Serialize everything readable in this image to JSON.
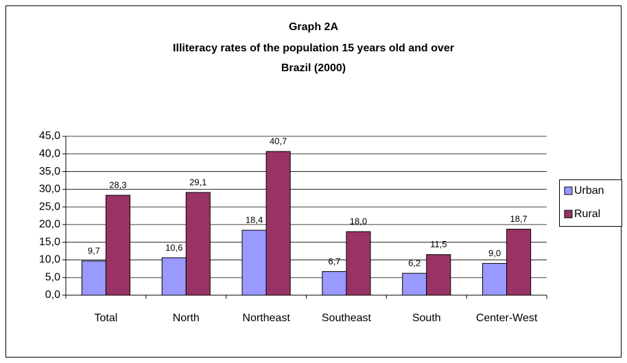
{
  "chart_data": {
    "type": "bar",
    "title": "Graph 2A",
    "subtitle": [
      "Illiteracy rates of the population 15 years old and over",
      "Brazil (2000)"
    ],
    "categories": [
      "Total",
      "North",
      "Northeast",
      "Southeast",
      "South",
      "Center-West"
    ],
    "series": [
      {
        "name": "Urban",
        "color": "#9999ff",
        "values": [
          9.7,
          10.6,
          18.4,
          6.7,
          6.2,
          9.0
        ],
        "value_labels": [
          "9,7",
          "10,6",
          "18,4",
          "6,7",
          "6,2",
          "9,0"
        ]
      },
      {
        "name": "Rural",
        "color": "#993366",
        "values": [
          28.3,
          29.1,
          40.7,
          18.0,
          11.5,
          18.7
        ],
        "value_labels": [
          "28,3",
          "29,1",
          "40,7",
          "18,0",
          "11,5",
          "18,7"
        ]
      }
    ],
    "ylim": [
      0,
      45
    ],
    "yticks": [
      {
        "value": 0,
        "label": "0,0"
      },
      {
        "value": 5,
        "label": "5,0"
      },
      {
        "value": 10,
        "label": "10,0"
      },
      {
        "value": 15,
        "label": "15,0"
      },
      {
        "value": 20,
        "label": "20,0"
      },
      {
        "value": 25,
        "label": "25,0"
      },
      {
        "value": 30,
        "label": "30,0"
      },
      {
        "value": 35,
        "label": "35,0"
      },
      {
        "value": 40,
        "label": "40,0"
      },
      {
        "value": 45,
        "label": "45,0"
      }
    ],
    "grid": true,
    "legend": "right"
  }
}
